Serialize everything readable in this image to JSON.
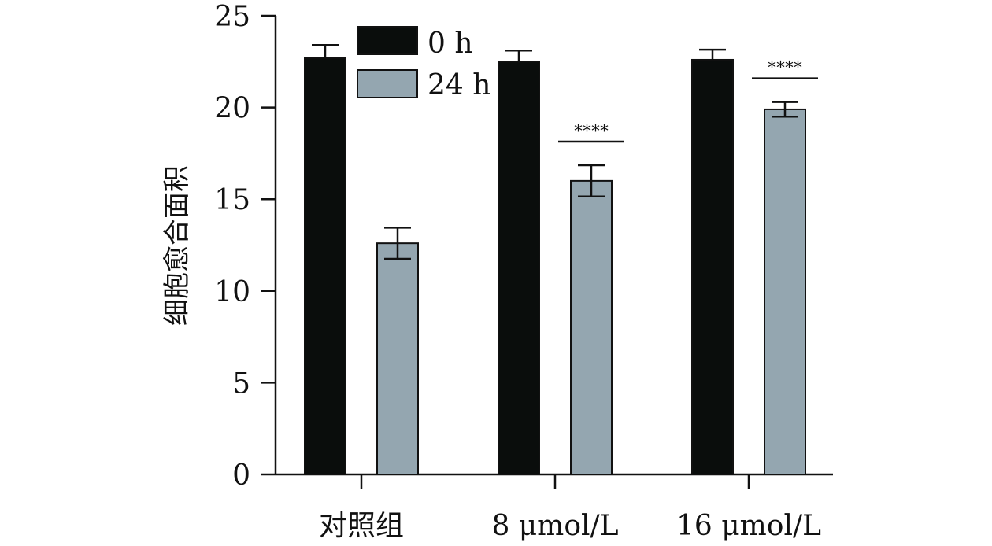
{
  "chart_data": {
    "type": "bar",
    "title": "",
    "xlabel": "",
    "ylabel": "细胞愈合面积",
    "ylim": [
      0,
      25
    ],
    "yticks": [
      0,
      5,
      10,
      15,
      20,
      25
    ],
    "categories": [
      "对照组",
      "8 μmol/L",
      "16 μmol/L"
    ],
    "series": [
      {
        "name": "0 h",
        "color": "#0a0d0c",
        "values": [
          22.7,
          22.5,
          22.6
        ],
        "errors": [
          0.7,
          0.6,
          0.55
        ]
      },
      {
        "name": "24 h",
        "color": "#94a6b0",
        "values": [
          12.6,
          16.0,
          19.9
        ],
        "errors": [
          0.85,
          0.85,
          0.4
        ]
      }
    ],
    "significance": [
      {
        "category": "8 μmol/L",
        "series": "24 h",
        "label": "****"
      },
      {
        "category": "16 μmol/L",
        "series": "24 h",
        "label": "****"
      }
    ],
    "legend": {
      "position": "top-left"
    },
    "grid": false
  }
}
